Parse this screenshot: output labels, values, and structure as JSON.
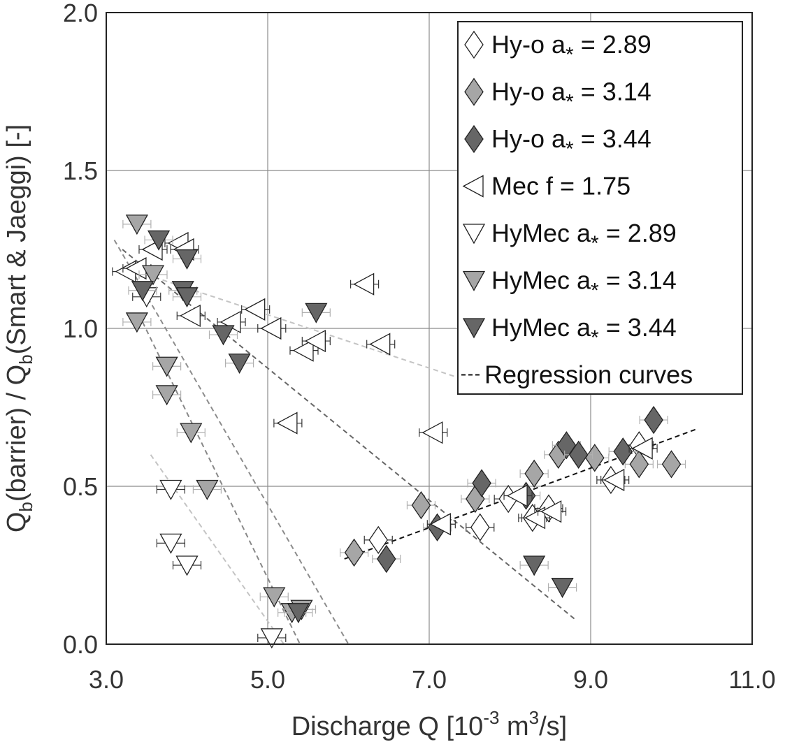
{
  "chart_data": {
    "type": "scatter",
    "xlabel": "Discharge Q [10-3 m3/s]",
    "ylabel": "Qb(barrier) / Qb(Smart & Jaeggi) [-]",
    "xlim": [
      3.0,
      11.0
    ],
    "ylim": [
      0.0,
      2.0
    ],
    "xticks": [
      "3.0",
      "5.0",
      "7.0",
      "9.0",
      "11.0"
    ],
    "yticks": [
      "0.0",
      "0.5",
      "1.0",
      "1.5",
      "2.0"
    ],
    "grid": true,
    "legend_position": "top-right",
    "series": [
      {
        "name": "Hy-o a* = 2.89",
        "legend_label": "Hy-o a",
        "legend_value": "= 2.89",
        "marker": "diamond",
        "fill": "#ffffff",
        "points": [
          [
            6.37,
            0.33
          ],
          [
            7.63,
            0.37
          ],
          [
            7.98,
            0.46
          ],
          [
            8.28,
            0.4
          ],
          [
            8.48,
            0.43
          ],
          [
            9.25,
            0.52
          ],
          [
            9.6,
            0.63
          ]
        ]
      },
      {
        "name": "Hy-o a* = 3.14",
        "legend_label": "Hy-o a",
        "legend_value": "= 3.14",
        "marker": "diamond",
        "fill": "#a6a6a6",
        "points": [
          [
            6.07,
            0.29
          ],
          [
            6.9,
            0.44
          ],
          [
            7.57,
            0.46
          ],
          [
            8.3,
            0.54
          ],
          [
            8.6,
            0.6
          ],
          [
            9.05,
            0.59
          ],
          [
            9.6,
            0.57
          ],
          [
            10.0,
            0.57
          ]
        ]
      },
      {
        "name": "Hy-o a* = 3.44",
        "legend_label": "Hy-o a",
        "legend_value": "= 3.44",
        "marker": "diamond",
        "fill": "#666666",
        "points": [
          [
            6.47,
            0.27
          ],
          [
            7.1,
            0.37
          ],
          [
            7.65,
            0.51
          ],
          [
            8.2,
            0.47
          ],
          [
            8.7,
            0.63
          ],
          [
            8.85,
            0.6
          ],
          [
            9.4,
            0.61
          ],
          [
            9.78,
            0.71
          ]
        ]
      },
      {
        "name": "Mec f = 1.75",
        "legend_label": "Mec f",
        "legend_value": "= 1.75",
        "marker": "triangle-left",
        "fill": "#ffffff",
        "points": [
          [
            3.25,
            1.18
          ],
          [
            3.38,
            1.19
          ],
          [
            3.58,
            1.25
          ],
          [
            3.9,
            1.27
          ],
          [
            3.97,
            1.25
          ],
          [
            4.05,
            1.04
          ],
          [
            4.55,
            1.02
          ],
          [
            4.85,
            1.06
          ],
          [
            5.05,
            1.0
          ],
          [
            5.25,
            0.7
          ],
          [
            5.45,
            0.93
          ],
          [
            5.6,
            0.96
          ],
          [
            6.2,
            1.14
          ],
          [
            6.4,
            0.95
          ],
          [
            7.05,
            0.67
          ],
          [
            7.15,
            0.38
          ],
          [
            8.1,
            0.47
          ],
          [
            8.32,
            0.4
          ],
          [
            8.52,
            0.42
          ],
          [
            9.3,
            0.52
          ],
          [
            9.65,
            0.62
          ]
        ]
      },
      {
        "name": "HyMec a* = 2.89",
        "legend_label": "HyMec a",
        "legend_value": "= 2.89",
        "marker": "triangle-down",
        "fill": "#ffffff",
        "points": [
          [
            3.5,
            1.1
          ],
          [
            3.8,
            0.49
          ],
          [
            3.8,
            0.32
          ],
          [
            4.0,
            0.25
          ],
          [
            5.05,
            0.02
          ]
        ]
      },
      {
        "name": "HyMec a* = 3.14",
        "legend_label": "HyMec a",
        "legend_value": "= 3.14",
        "marker": "triangle-down",
        "fill": "#a6a6a6",
        "points": [
          [
            3.38,
            1.33
          ],
          [
            3.58,
            1.17
          ],
          [
            3.38,
            1.02
          ],
          [
            3.75,
            0.88
          ],
          [
            3.75,
            0.79
          ],
          [
            4.05,
            0.67
          ],
          [
            4.25,
            0.49
          ],
          [
            5.08,
            0.15
          ],
          [
            5.3,
            0.1
          ],
          [
            5.42,
            0.11
          ]
        ]
      },
      {
        "name": "HyMec a* = 3.44",
        "legend_label": "HyMec a",
        "legend_value": "= 3.44",
        "marker": "triangle-down",
        "fill": "#666666",
        "points": [
          [
            3.65,
            1.28
          ],
          [
            4.0,
            1.22
          ],
          [
            3.95,
            1.12
          ],
          [
            4.0,
            1.1
          ],
          [
            3.45,
            1.12
          ],
          [
            4.45,
            0.98
          ],
          [
            4.65,
            0.89
          ],
          [
            5.6,
            1.05
          ],
          [
            5.38,
            0.1
          ],
          [
            8.3,
            0.25
          ],
          [
            8.65,
            0.18
          ]
        ]
      }
    ],
    "regression_legend_label": "Regression  curves",
    "regression_curves": [
      {
        "x": [
          3.1,
          6.0
        ],
        "y": [
          1.28,
          0.0
        ],
        "color": "#8c8c8c"
      },
      {
        "x": [
          3.45,
          5.4
        ],
        "y": [
          1.02,
          0.0
        ],
        "color": "#888888"
      },
      {
        "x": [
          3.55,
          5.2
        ],
        "y": [
          0.6,
          0.0
        ],
        "color": "#c4c4c4"
      },
      {
        "x": [
          3.5,
          8.0
        ],
        "y": [
          1.17,
          0.79
        ],
        "color": "#c4c4c4"
      },
      {
        "x": [
          3.2,
          8.8
        ],
        "y": [
          1.25,
          0.08
        ],
        "color": "#666666"
      },
      {
        "x": [
          5.95,
          10.3
        ],
        "y": [
          0.27,
          0.68
        ],
        "color": "#111111"
      }
    ]
  }
}
